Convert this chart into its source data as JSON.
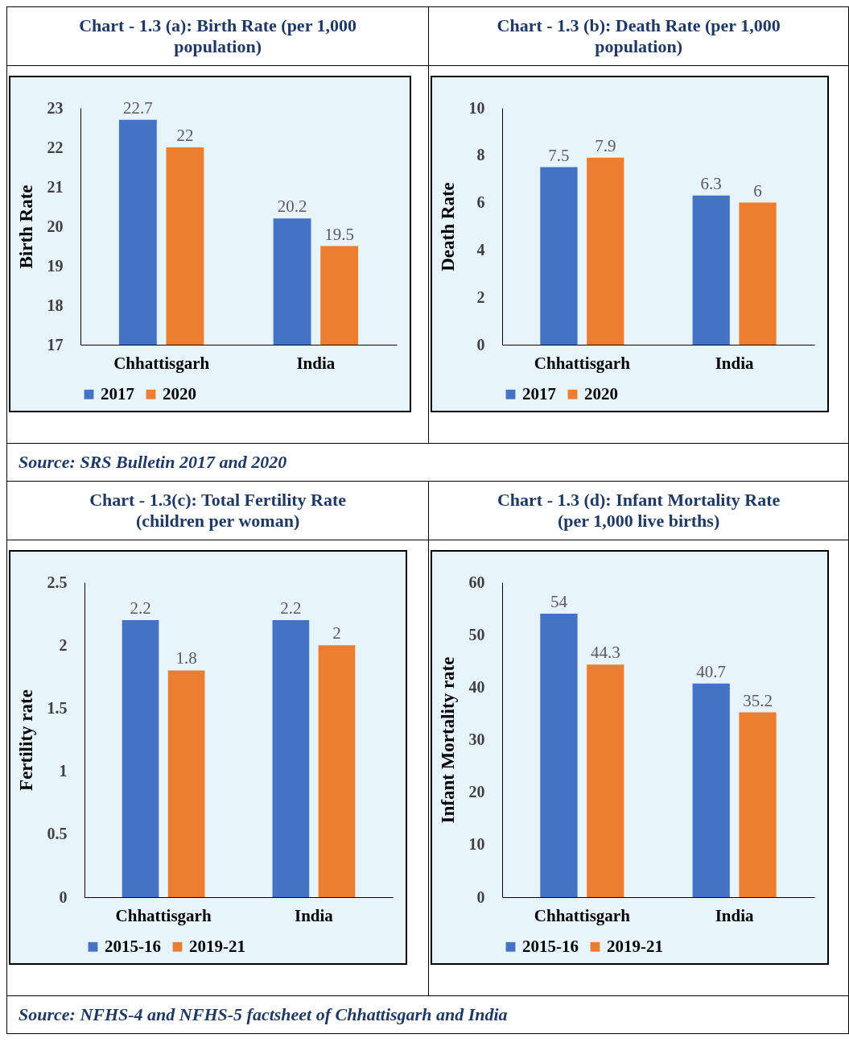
{
  "chart_data": [
    {
      "type": "bar",
      "title": "Chart - 1.3 (a): Birth Rate (per 1,000 population)",
      "ylabel": "Birth Rate",
      "categories": [
        "Chhattisgarh",
        "India"
      ],
      "series": [
        {
          "name": "2017",
          "color": "#4472c4",
          "values": [
            22.7,
            20.2
          ]
        },
        {
          "name": "2020",
          "color": "#ed7d31",
          "values": [
            22,
            19.5
          ]
        }
      ],
      "ylim": [
        17,
        23
      ],
      "yticks": [
        17,
        18,
        19,
        20,
        21,
        22,
        23
      ],
      "data_labels": true,
      "legend": "bottom",
      "annotations": [
        "Source: SRS Bulletin 2017 and 2020"
      ]
    },
    {
      "type": "bar",
      "title": "Chart - 1.3 (b): Death Rate (per 1,000 population)",
      "ylabel": "Death Rate",
      "categories": [
        "Chhattisgarh",
        "India"
      ],
      "series": [
        {
          "name": "2017",
          "color": "#4472c4",
          "values": [
            7.5,
            6.3
          ]
        },
        {
          "name": "2020",
          "color": "#ed7d31",
          "values": [
            7.9,
            6
          ]
        }
      ],
      "ylim": [
        0,
        10
      ],
      "yticks": [
        0,
        2,
        4,
        6,
        8,
        10
      ],
      "data_labels": true,
      "legend": "bottom"
    },
    {
      "type": "bar",
      "title": "Chart - 1.3(c): Total Fertility Rate (children per woman)",
      "ylabel": "Fertility rate",
      "categories": [
        "Chhattisgarh",
        "India"
      ],
      "series": [
        {
          "name": "2015-16",
          "color": "#4472c4",
          "values": [
            2.2,
            2.2
          ]
        },
        {
          "name": "2019-21",
          "color": "#ed7d31",
          "values": [
            1.8,
            2
          ]
        }
      ],
      "ylim": [
        0,
        2.5
      ],
      "yticks": [
        0,
        0.5,
        1,
        1.5,
        2,
        2.5
      ],
      "data_labels": true,
      "legend": "bottom",
      "annotations": [
        "Source: NFHS-4 and NFHS-5 factsheet of Chhattisgarh and India"
      ]
    },
    {
      "type": "bar",
      "title": "Chart - 1.3 (d): Infant Mortality Rate (per 1,000 live births)",
      "ylabel": "Infant Mortality rate",
      "categories": [
        "Chhattisgarh",
        "India"
      ],
      "series": [
        {
          "name": "2015-16",
          "color": "#4472c4",
          "values": [
            54,
            40.7
          ]
        },
        {
          "name": "2019-21",
          "color": "#ed7d31",
          "values": [
            44.3,
            35.2
          ]
        }
      ],
      "ylim": [
        0,
        60
      ],
      "yticks": [
        0,
        10,
        20,
        30,
        40,
        50,
        60
      ],
      "data_labels": true,
      "legend": "bottom"
    }
  ]
}
